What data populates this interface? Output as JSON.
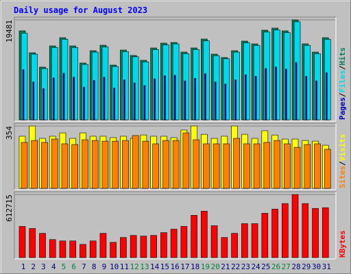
{
  "title": "Daily usage for August 2023",
  "legend_separator": "/",
  "weekend": [
    "5",
    "6",
    "12",
    "13",
    "19",
    "20",
    "26",
    "27"
  ],
  "weekend_color": "#008040",
  "weekday_color": "#000080",
  "chart_data": [
    {
      "type": "bar",
      "ylim": [
        0,
        19481
      ],
      "yticks": [
        19481
      ],
      "series": [
        {
          "name": "Hits",
          "color": "#00805c",
          "values": [
            17345,
            13075,
            10275,
            14410,
            16010,
            14410,
            11075,
            13475,
            14545,
            10675,
            13610,
            12545,
            11610,
            14010,
            14945,
            15075,
            13210,
            14010,
            15745,
            12810,
            12145,
            13475,
            15345,
            14810,
            17480,
            17880,
            17345,
            19481,
            14810,
            13210,
            16010
          ]
        },
        {
          "name": "Files",
          "color": "#00d8ec",
          "values": [
            16900,
            12800,
            10000,
            14100,
            15700,
            14100,
            10800,
            13200,
            14200,
            10400,
            13300,
            12300,
            11300,
            13700,
            14600,
            14800,
            12900,
            13700,
            15400,
            12500,
            11900,
            13200,
            15000,
            14500,
            17100,
            17500,
            17000,
            19100,
            14500,
            12900,
            15700
          ]
        },
        {
          "name": "Pages",
          "color": "#0000c0",
          "values": [
            9800,
            7400,
            6100,
            8200,
            9100,
            8300,
            6400,
            7700,
            8300,
            6200,
            7800,
            7200,
            6700,
            8000,
            8600,
            8700,
            7600,
            8100,
            9000,
            7400,
            7000,
            7800,
            8800,
            8500,
            10000,
            10300,
            9900,
            11200,
            8500,
            7600,
            9200
          ]
        }
      ]
    },
    {
      "type": "bar",
      "ylim": [
        0,
        354
      ],
      "yticks": [
        354
      ],
      "series": [
        {
          "name": "Visits",
          "color": "#ffff00",
          "values": [
            296,
            354,
            284,
            296,
            315,
            284,
            315,
            296,
            296,
            288,
            296,
            284,
            303,
            296,
            296,
            288,
            331,
            354,
            307,
            284,
            296,
            354,
            307,
            284,
            327,
            303,
            280,
            280,
            272,
            268,
            245
          ]
        },
        {
          "name": "Sites",
          "color": "#ff8000",
          "values": [
            261,
            272,
            261,
            280,
            253,
            249,
            276,
            272,
            268,
            268,
            272,
            300,
            268,
            253,
            272,
            272,
            315,
            276,
            253,
            253,
            253,
            284,
            253,
            253,
            261,
            272,
            253,
            233,
            249,
            253,
            222
          ]
        }
      ]
    },
    {
      "type": "bar",
      "ylim": [
        0,
        612715
      ],
      "yticks": [
        612715
      ],
      "categories": [
        "1",
        "2",
        "3",
        "4",
        "5",
        "6",
        "7",
        "8",
        "9",
        "10",
        "11",
        "12",
        "13",
        "14",
        "15",
        "16",
        "17",
        "18",
        "19",
        "20",
        "21",
        "22",
        "23",
        "24",
        "25",
        "26",
        "27",
        "28",
        "29",
        "30",
        "31"
      ],
      "series": [
        {
          "name": "KBytes",
          "color": "#ff0000",
          "values": [
            303000,
            282800,
            235700,
            175000,
            161600,
            161600,
            127900,
            161600,
            235700,
            148100,
            195300,
            215500,
            208700,
            215500,
            242400,
            276100,
            303000,
            410700,
            451100,
            309700,
            195300,
            235700,
            329900,
            329900,
            430900,
            471300,
            525200,
            612715,
            525200,
            478000,
            484800
          ]
        }
      ]
    }
  ]
}
